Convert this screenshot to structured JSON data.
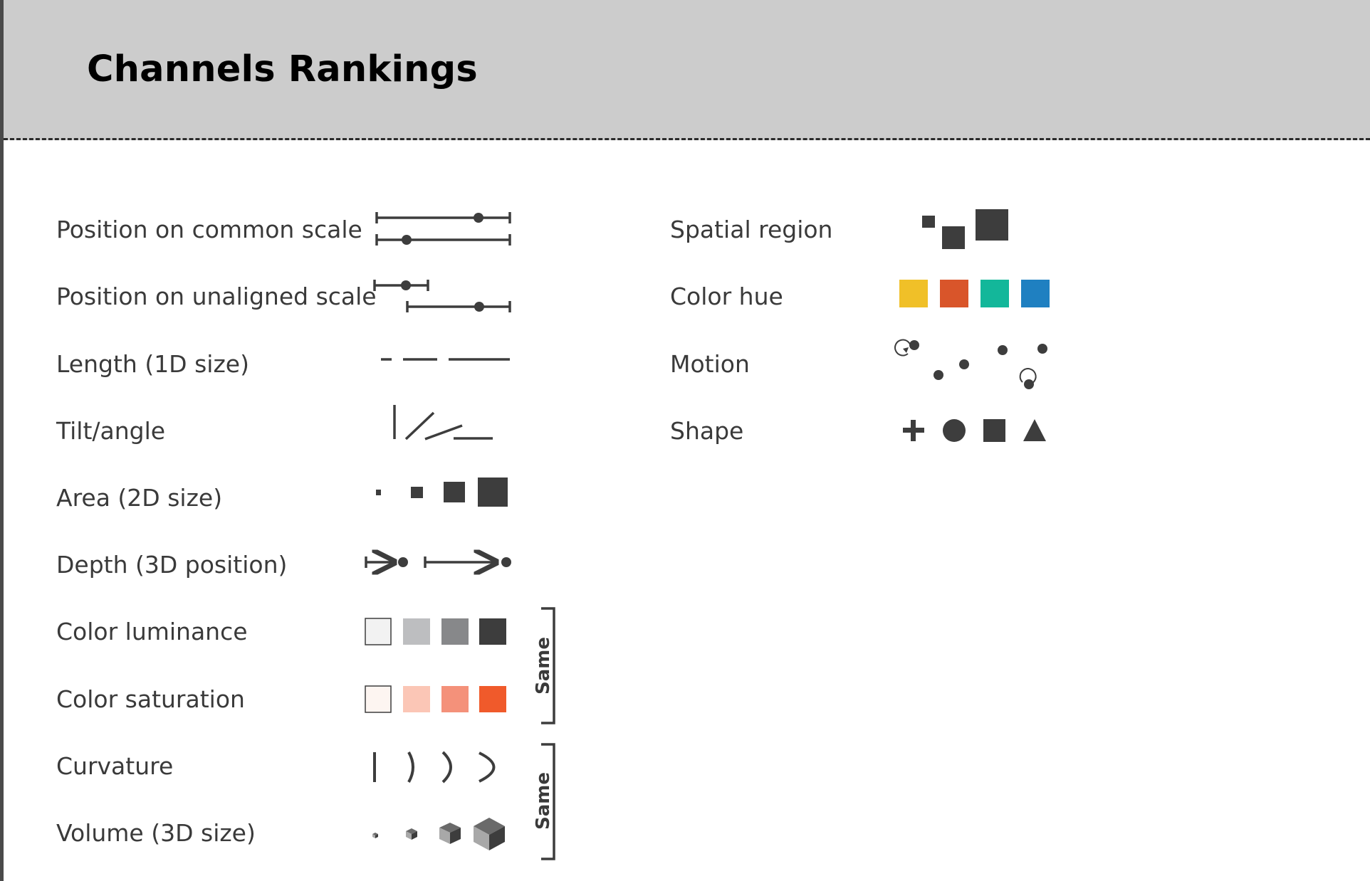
{
  "title": "Channels Rankings",
  "left_channels": [
    {
      "label": "Position on common scale",
      "glyph": "position-common-scale-icon"
    },
    {
      "label": "Position on unaligned scale",
      "glyph": "position-unaligned-scale-icon"
    },
    {
      "label": "Length (1D size)",
      "glyph": "length-icon"
    },
    {
      "label": "Tilt/angle",
      "glyph": "tilt-angle-icon"
    },
    {
      "label": "Area (2D size)",
      "glyph": "area-icon"
    },
    {
      "label": "Depth (3D position)",
      "glyph": "depth-icon"
    },
    {
      "label": "Color luminance",
      "glyph": "luminance-swatches-icon"
    },
    {
      "label": "Color saturation",
      "glyph": "saturation-swatches-icon"
    },
    {
      "label": "Curvature",
      "glyph": "curvature-icon"
    },
    {
      "label": "Volume (3D size)",
      "glyph": "volume-cubes-icon"
    }
  ],
  "right_channels": [
    {
      "label": "Spatial region",
      "glyph": "spatial-region-icon"
    },
    {
      "label": "Color hue",
      "glyph": "color-hue-swatches-icon"
    },
    {
      "label": "Motion",
      "glyph": "motion-icon"
    },
    {
      "label": "Shape",
      "glyph": "shapes-icon"
    }
  ],
  "groups": [
    {
      "label": "Same",
      "members": [
        "Color luminance",
        "Color saturation"
      ]
    },
    {
      "label": "Same",
      "members": [
        "Curvature",
        "Volume (3D size)"
      ]
    }
  ],
  "colors": {
    "mark": "#3d3d3d",
    "luminance": [
      "#f2f2f2",
      "#bdbec0",
      "#87888a",
      "#3d3d3d"
    ],
    "saturation": [
      "#fdf5f1",
      "#fbc6b6",
      "#f4917a",
      "#f05a2b"
    ],
    "hue": [
      "#f0c028",
      "#d9552a",
      "#13b79a",
      "#1f80c1"
    ]
  }
}
